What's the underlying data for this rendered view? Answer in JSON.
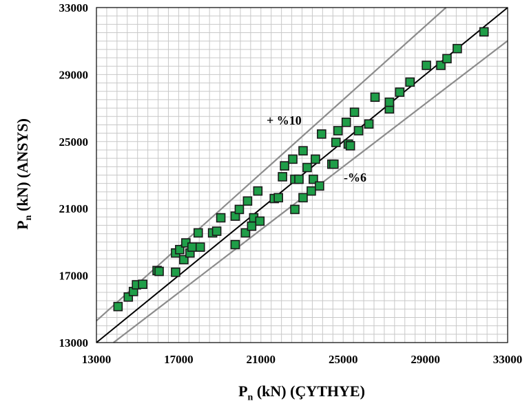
{
  "chart_data": {
    "type": "scatter",
    "x_label_main": "P",
    "x_label_sub": "n",
    "x_label_rest": " (kN) (ÇYTHYE)",
    "y_label_main": "P",
    "y_label_sub": "n",
    "y_label_rest": " (kN) (ANSYS)",
    "xlim": [
      13000,
      33000
    ],
    "ylim": [
      13000,
      33000
    ],
    "x_ticks": [
      13000,
      17000,
      21000,
      25000,
      29000,
      33000
    ],
    "y_ticks": [
      13000,
      17000,
      21000,
      25000,
      29000,
      33000
    ],
    "x_tick_labels": [
      "13000",
      "17000",
      "21000",
      "25000",
      "29000",
      "33000"
    ],
    "y_tick_labels": [
      "13000",
      "17000",
      "21000",
      "25000",
      "29000",
      "33000"
    ],
    "grid": true,
    "marker_color": "#1f9e48",
    "reference_lines": [
      {
        "kind": "equality",
        "factor": 1.0,
        "color": "#000000"
      },
      {
        "kind": "upper",
        "factor": 1.1,
        "label": "+ %10",
        "color": "#8c8c8c"
      },
      {
        "kind": "lower",
        "factor": 0.94,
        "label": "-%6",
        "color": "#8c8c8c"
      }
    ],
    "annotations": {
      "upper": "+ %10",
      "lower": "-%6"
    },
    "points": [
      [
        14050,
        15150
      ],
      [
        14550,
        15720
      ],
      [
        14800,
        16050
      ],
      [
        14950,
        16450
      ],
      [
        15250,
        16480
      ],
      [
        15950,
        17300
      ],
      [
        16050,
        17250
      ],
      [
        16850,
        17200
      ],
      [
        16850,
        18350
      ],
      [
        17050,
        18550
      ],
      [
        17250,
        17950
      ],
      [
        17350,
        18950
      ],
      [
        17550,
        18350
      ],
      [
        17650,
        18700
      ],
      [
        17950,
        19550
      ],
      [
        18050,
        18700
      ],
      [
        18650,
        19550
      ],
      [
        18850,
        19650
      ],
      [
        19050,
        20450
      ],
      [
        19750,
        18850
      ],
      [
        19750,
        20550
      ],
      [
        19950,
        20950
      ],
      [
        20250,
        19550
      ],
      [
        20350,
        21450
      ],
      [
        20550,
        19950
      ],
      [
        20650,
        20450
      ],
      [
        20850,
        22050
      ],
      [
        20950,
        20250
      ],
      [
        21650,
        21600
      ],
      [
        21850,
        21650
      ],
      [
        22050,
        22900
      ],
      [
        22150,
        23550
      ],
      [
        22550,
        23950
      ],
      [
        22650,
        22750
      ],
      [
        22650,
        20950
      ],
      [
        22850,
        22750
      ],
      [
        23050,
        24450
      ],
      [
        23050,
        21650
      ],
      [
        23250,
        23450
      ],
      [
        23450,
        22050
      ],
      [
        23550,
        22750
      ],
      [
        23650,
        23950
      ],
      [
        23850,
        22350
      ],
      [
        23950,
        25450
      ],
      [
        24450,
        23650
      ],
      [
        24550,
        23650
      ],
      [
        24650,
        24950
      ],
      [
        24750,
        25650
      ],
      [
        25150,
        26150
      ],
      [
        25250,
        24850
      ],
      [
        25350,
        24750
      ],
      [
        25550,
        26750
      ],
      [
        25750,
        25650
      ],
      [
        26250,
        26050
      ],
      [
        26550,
        27650
      ],
      [
        27250,
        26950
      ],
      [
        27250,
        27350
      ],
      [
        27750,
        27950
      ],
      [
        28250,
        28550
      ],
      [
        29050,
        29550
      ],
      [
        29750,
        29550
      ],
      [
        30050,
        29950
      ],
      [
        30550,
        30550
      ],
      [
        31850,
        31550
      ]
    ]
  }
}
